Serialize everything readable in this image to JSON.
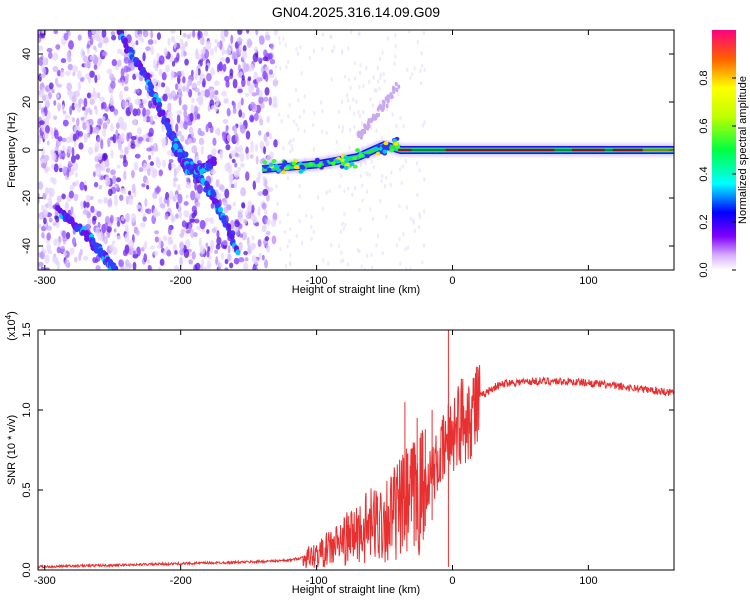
{
  "title": "GN04.2025.316.14.09.G09",
  "chart_data": [
    {
      "type": "heatmap",
      "name": "spectrogram",
      "xlabel": "Height of straight line (km)",
      "ylabel": "Frequency (Hz)",
      "xlim": [
        -305,
        163
      ],
      "ylim": [
        -50,
        50
      ],
      "xticks": [
        -300,
        -200,
        -100,
        0,
        100
      ],
      "yticks": [
        -40,
        -20,
        0,
        20,
        40
      ],
      "colorbar": {
        "label": "Normalized spectral amplitude",
        "range": [
          0.0,
          1.0
        ],
        "ticks": [
          0.0,
          0.2,
          0.4,
          0.6,
          0.8
        ],
        "tick_labels": [
          "0.0",
          "0.2",
          "0.4",
          "0.6",
          "0.8"
        ]
      },
      "features": [
        {
          "name": "descending-trace-upper",
          "points": [
            [
              -245,
              48
            ],
            [
              -225,
              30
            ],
            [
              -210,
              10
            ],
            [
              -195,
              -5
            ],
            [
              -175,
              -20
            ],
            [
              -158,
              -42
            ]
          ]
        },
        {
          "name": "descending-trace-lower",
          "points": [
            [
              -290,
              -25
            ],
            [
              -270,
              -35
            ],
            [
              -255,
              -45
            ],
            [
              -248,
              -50
            ]
          ]
        },
        {
          "name": "branch-right",
          "points": [
            [
              -205,
              2
            ],
            [
              -195,
              -8
            ],
            [
              -185,
              -8
            ],
            [
              -175,
              -5
            ]
          ]
        },
        {
          "name": "main-signal-line",
          "points": [
            [
              -140,
              -8
            ],
            [
              -100,
              -6
            ],
            [
              -70,
              -3
            ],
            [
              -50,
              2
            ],
            [
              -38,
              0
            ],
            [
              0,
              0
            ],
            [
              80,
              0
            ],
            [
              163,
              0
            ]
          ]
        },
        {
          "name": "faint-upper-branch",
          "points": [
            [
              -70,
              5
            ],
            [
              -55,
              15
            ],
            [
              -40,
              27
            ]
          ]
        }
      ]
    },
    {
      "type": "line",
      "name": "snr",
      "xlabel": "Height of straight line (km)",
      "ylabel": "SNR (10 * v/v)",
      "y_multiplier": "(x10",
      "y_multiplier_exp": "4",
      "y_multiplier_close": ")",
      "xlim": [
        -305,
        163
      ],
      "ylim": [
        0.0,
        1.5
      ],
      "xticks": [
        -300,
        -200,
        -100,
        0,
        100
      ],
      "yticks": [
        0.0,
        0.5,
        1.0,
        1.5
      ],
      "ytick_labels": [
        "0.0",
        "0.5",
        "1.0",
        "1.5"
      ],
      "color": "#e83030",
      "envelope": [
        [
          -305,
          0.02
        ],
        [
          -250,
          0.03
        ],
        [
          -200,
          0.04
        ],
        [
          -150,
          0.05
        ],
        [
          -120,
          0.06
        ],
        [
          -100,
          0.1
        ],
        [
          -80,
          0.2
        ],
        [
          -60,
          0.3
        ],
        [
          -40,
          0.4
        ],
        [
          -20,
          0.55
        ],
        [
          -10,
          0.7
        ],
        [
          0,
          0.9
        ],
        [
          10,
          1.0
        ],
        [
          20,
          1.08
        ],
        [
          30,
          1.14
        ],
        [
          40,
          1.17
        ],
        [
          60,
          1.18
        ],
        [
          80,
          1.18
        ],
        [
          100,
          1.17
        ],
        [
          120,
          1.15
        ],
        [
          140,
          1.13
        ],
        [
          163,
          1.11
        ]
      ],
      "spikes": [
        [
          -35,
          1.05
        ],
        [
          -26,
          0.95
        ],
        [
          -20,
          0.88
        ],
        [
          -15,
          1.0
        ],
        [
          -3,
          1.5
        ],
        [
          -3,
          0.02
        ]
      ]
    }
  ]
}
